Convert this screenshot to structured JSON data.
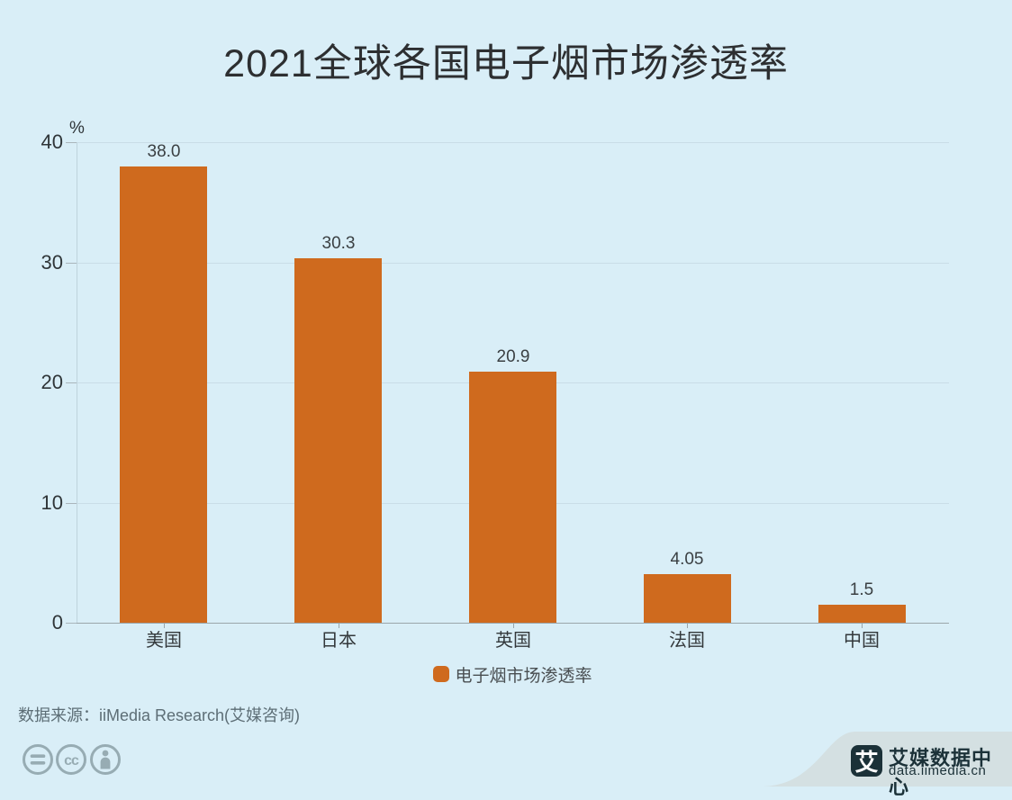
{
  "title": "2021全球各国电子烟市场渗透率",
  "chart_data": {
    "type": "bar",
    "title": "2021全球各国电子烟市场渗透率",
    "categories": [
      "美国",
      "日本",
      "英国",
      "法国",
      "中国"
    ],
    "values": [
      38.0,
      30.3,
      20.9,
      4.05,
      1.5
    ],
    "value_labels": [
      "38.0",
      "30.3",
      "20.9",
      "4.05",
      "1.5"
    ],
    "series_name": "电子烟市场渗透率",
    "unit": "%",
    "xlabel": "",
    "ylabel": "%",
    "ylim": [
      0,
      40
    ],
    "yticks": [
      0,
      10,
      20,
      30,
      40
    ],
    "grid": true,
    "legend_position": "bottom",
    "bar_color": "#cf6a1e"
  },
  "legend": {
    "label": "电子烟市场渗透率"
  },
  "source": {
    "text": "数据来源：iiMedia Research(艾媒咨询)"
  },
  "footer_icons": [
    "equals-circle-icon",
    "cc-circle-icon",
    "attribution-person-icon"
  ],
  "brand": {
    "logo_char": "艾",
    "name": "艾媒数据中心",
    "url": "data.iimedia.cn"
  },
  "colors": {
    "background": "#d9eef7",
    "bar": "#cf6a1e",
    "brand_dark": "#1b3138",
    "brand_band": "#d4e0e2",
    "gridline": "#c9dde7"
  }
}
